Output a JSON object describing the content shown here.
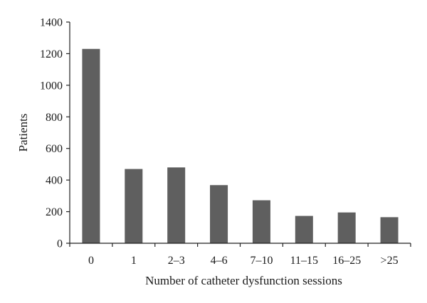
{
  "chart_data": {
    "type": "bar",
    "title": "",
    "xlabel": "Number of catheter dysfunction sessions",
    "ylabel": "Patients",
    "categories": [
      "0",
      "1",
      "2–3",
      "4–6",
      "7–10",
      "11–15",
      "16–25",
      ">25"
    ],
    "values": [
      1230,
      470,
      480,
      368,
      272,
      173,
      195,
      165
    ],
    "ylim": [
      0,
      1400
    ],
    "yticks": [
      0,
      200,
      400,
      600,
      800,
      1000,
      1200,
      1400
    ],
    "grid": false,
    "legend": "none",
    "colors": {
      "bar": "#5f5f5f",
      "axis": "#222222",
      "text": "#1a1a1a"
    }
  }
}
